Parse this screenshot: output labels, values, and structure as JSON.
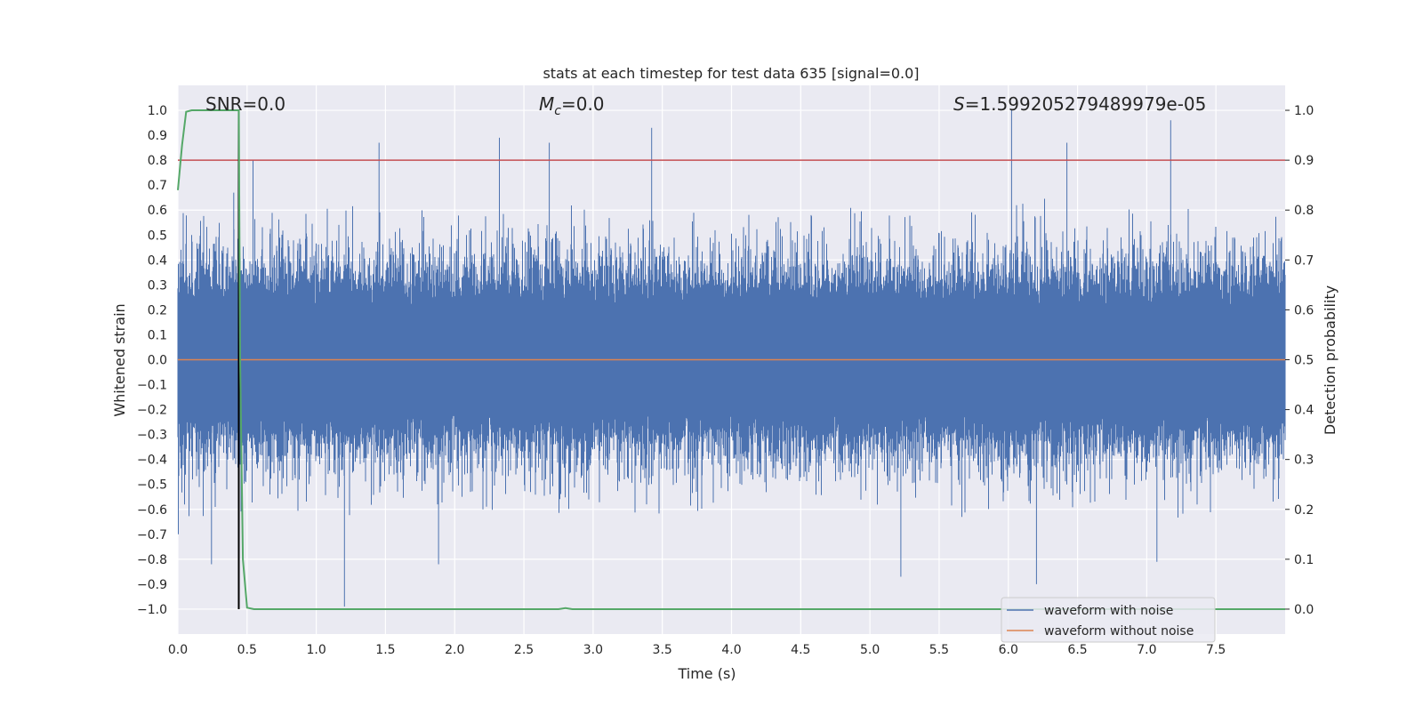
{
  "chart_data": {
    "type": "line",
    "title": "stats at each timestep for test data 635 [signal=0.0]",
    "xlabel": "Time (s)",
    "ylabel": "Whitened strain",
    "y2label": "Detection probability",
    "xlim": [
      0.0,
      8.0
    ],
    "ylim": [
      -1.1,
      1.1
    ],
    "y2lim": [
      -0.05,
      1.05
    ],
    "xticks": [
      "0.0",
      "0.5",
      "1.0",
      "1.5",
      "2.0",
      "2.5",
      "3.0",
      "3.5",
      "4.0",
      "4.5",
      "5.0",
      "5.5",
      "6.0",
      "6.5",
      "7.0",
      "7.5"
    ],
    "yticks": [
      "1.0",
      "0.9",
      "0.8",
      "0.7",
      "0.6",
      "0.5",
      "0.4",
      "0.3",
      "0.2",
      "0.1",
      "0.0",
      "−0.1",
      "−0.2",
      "−0.3",
      "−0.4",
      "−0.5",
      "−0.6",
      "−0.7",
      "−0.8",
      "−0.9",
      "−1.0"
    ],
    "y2ticks": [
      "1.0",
      "0.9",
      "0.8",
      "0.7",
      "0.6",
      "0.5",
      "0.4",
      "0.3",
      "0.2",
      "0.1",
      "0.0"
    ],
    "annotations": {
      "snr": "SNR=0.0",
      "mc_symbol": "M",
      "mc_sub": "c",
      "mc_value": "=0.0",
      "s_symbol": "S",
      "s_value": "=1.599205279489979e-05"
    },
    "threshold": {
      "value": 0.9,
      "axis": "right",
      "color": "#c44e52"
    },
    "vline": {
      "x": 0.44,
      "color": "#000000"
    },
    "series": [
      {
        "name": "waveform with noise",
        "color": "#4c72b0",
        "kind": "noise",
        "typical_amplitude": 0.35,
        "peaks": [
          {
            "x": 0.0,
            "y": -0.7
          },
          {
            "x": 0.24,
            "y": -0.82
          },
          {
            "x": 0.4,
            "y": 0.67
          },
          {
            "x": 0.54,
            "y": 0.8
          },
          {
            "x": 1.2,
            "y": -0.99
          },
          {
            "x": 1.45,
            "y": 0.87
          },
          {
            "x": 1.88,
            "y": -0.82
          },
          {
            "x": 2.32,
            "y": 0.89
          },
          {
            "x": 2.68,
            "y": 0.87
          },
          {
            "x": 3.42,
            "y": 0.93
          },
          {
            "x": 5.22,
            "y": -0.87
          },
          {
            "x": 6.02,
            "y": 1.0
          },
          {
            "x": 6.2,
            "y": -0.9
          },
          {
            "x": 6.42,
            "y": 0.87
          },
          {
            "x": 7.07,
            "y": -0.81
          },
          {
            "x": 7.17,
            "y": 0.96
          }
        ]
      },
      {
        "name": "waveform without noise",
        "color": "#dd8452",
        "kind": "constant",
        "value": 0.0
      },
      {
        "name": "detection probability",
        "color": "#55a868",
        "axis": "right",
        "kind": "curve",
        "x": [
          0.0,
          0.03,
          0.06,
          0.1,
          0.2,
          0.3,
          0.44,
          0.45,
          0.47,
          0.5,
          0.55,
          0.7,
          1.0,
          2.0,
          2.75,
          2.8,
          2.85,
          3.0,
          4.0,
          5.0,
          6.0,
          7.0,
          8.0
        ],
        "y": [
          0.84,
          0.93,
          0.997,
          1.0,
          1.0,
          1.0,
          1.0,
          0.5,
          0.1,
          0.003,
          0.0,
          0.0,
          0.0,
          0.0,
          0.0,
          0.002,
          0.0,
          0.0,
          0.0,
          0.0,
          0.0,
          0.0,
          0.0
        ]
      }
    ],
    "legend": {
      "position": "lower-right",
      "entries": [
        {
          "label": "waveform with noise",
          "color": "#4c72b0"
        },
        {
          "label": "waveform without noise",
          "color": "#dd8452"
        }
      ]
    }
  }
}
